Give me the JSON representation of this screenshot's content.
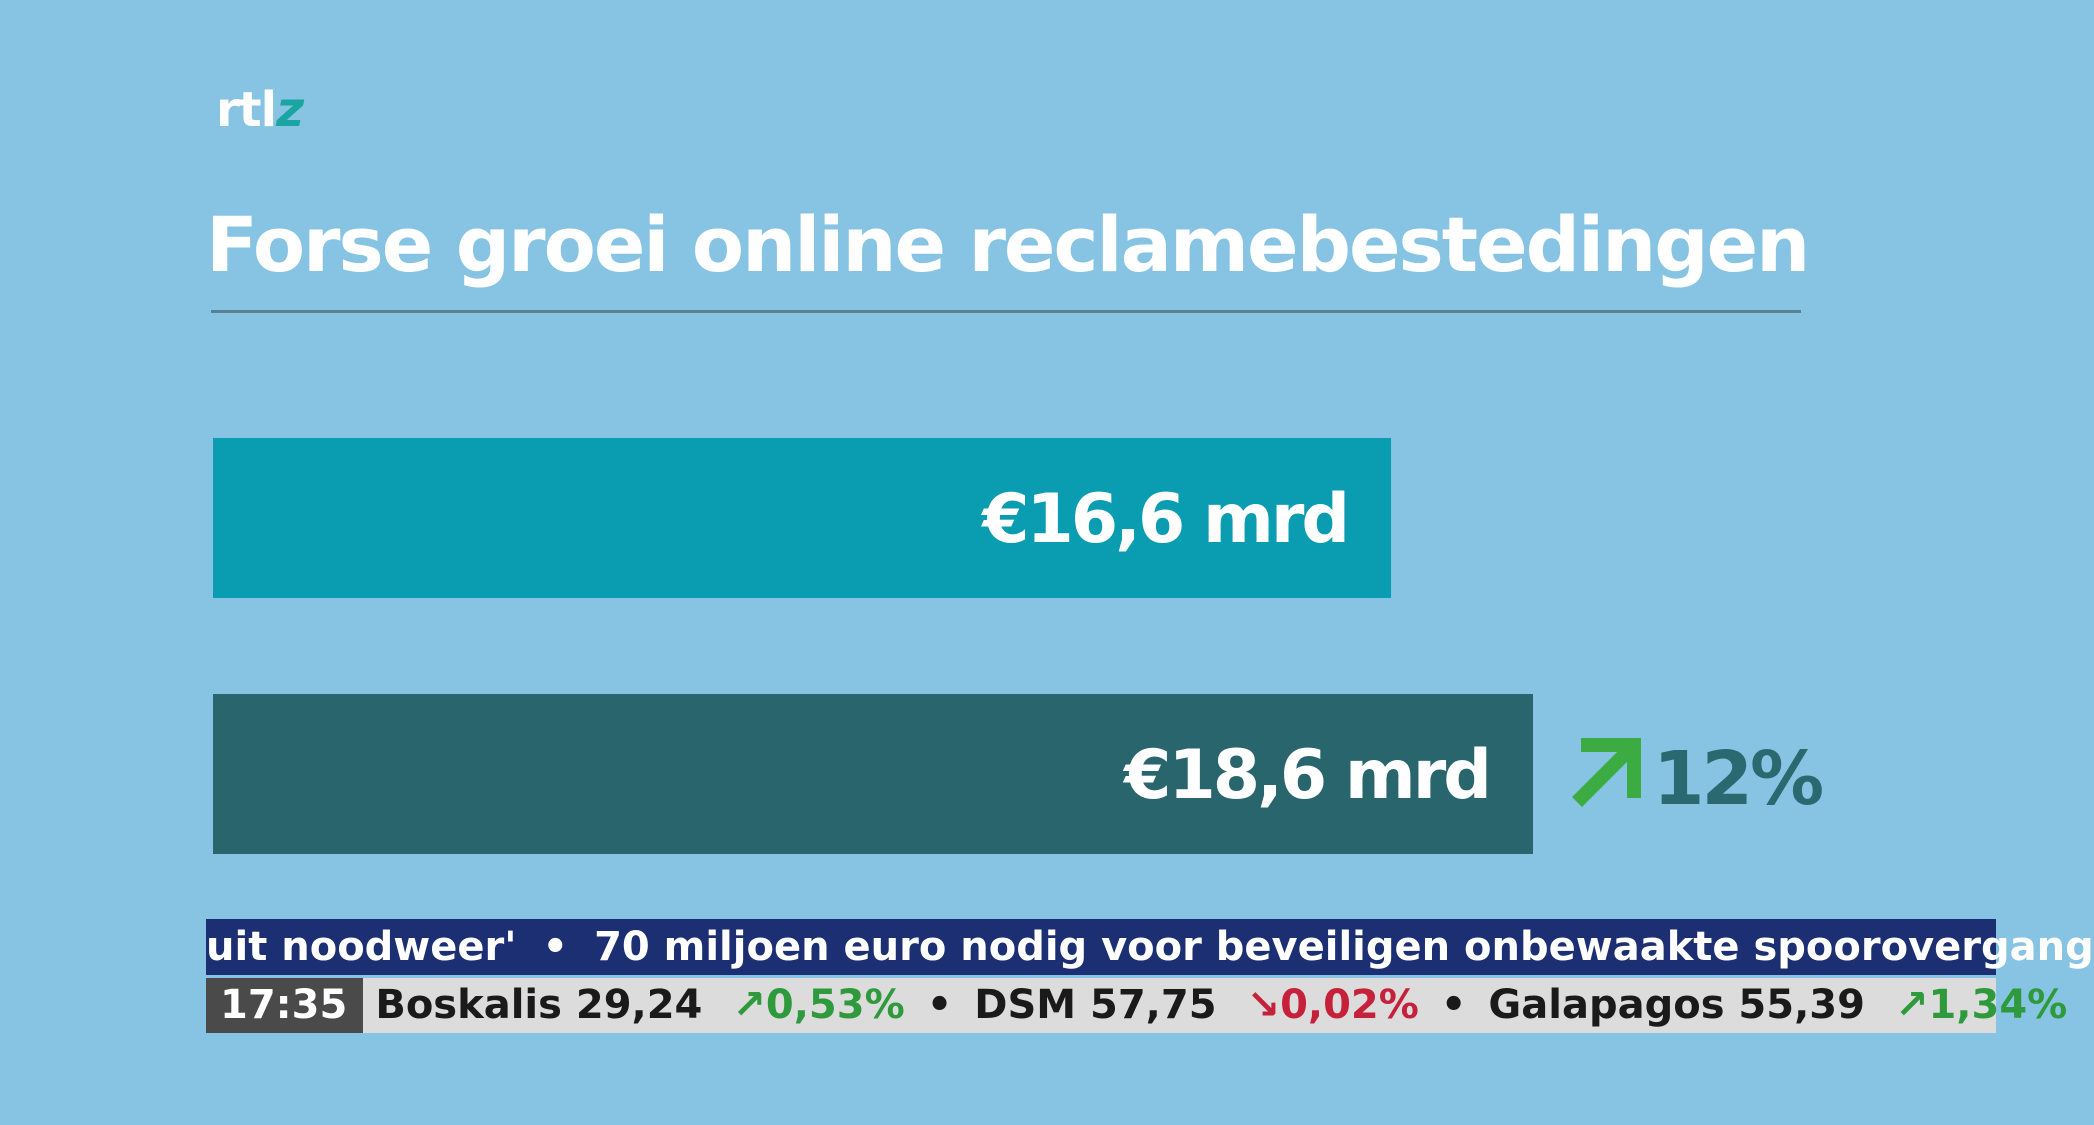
{
  "brand": {
    "logo_main": "rtl",
    "logo_accent": "z"
  },
  "title": "Forse groei online reclamebestedingen",
  "colors": {
    "background": "#87c4e3",
    "bar_first": "#0a9cb0",
    "bar_second": "#28656d",
    "growth_arrow": "#3cab42",
    "growth_text": "#2b6970",
    "ticker_top": "#1b2f72",
    "ticker_bottom": "#dcdcdc",
    "quote_up": "#2e9a3c",
    "quote_down": "#c6213a"
  },
  "chart_data": {
    "type": "bar",
    "orientation": "horizontal",
    "values": [
      16.6,
      18.6
    ],
    "value_labels": [
      "€16,6 mrd",
      "€18,6 mrd"
    ],
    "xlim": [
      0,
      18.6
    ],
    "grid": false,
    "legend": "none",
    "annotation": {
      "direction": "up",
      "icon": "arrow-up-right-icon",
      "text": "12%"
    }
  },
  "ticker": {
    "headline_before": "uit noodweer'",
    "headline_separator": "•",
    "headline_main": "70 miljoen euro nodig voor beveiligen onbewaakte spoorovergang",
    "time": "17:35",
    "separator": "•",
    "quotes": [
      {
        "name": "Boskalis",
        "price": "29,24",
        "change": "0,53%",
        "direction": "up"
      },
      {
        "name": "DSM",
        "price": "57,75",
        "change": "0,02%",
        "direction": "down"
      },
      {
        "name": "Galapagos",
        "price": "55,39",
        "change": "1,34%",
        "direction": "up"
      }
    ]
  }
}
